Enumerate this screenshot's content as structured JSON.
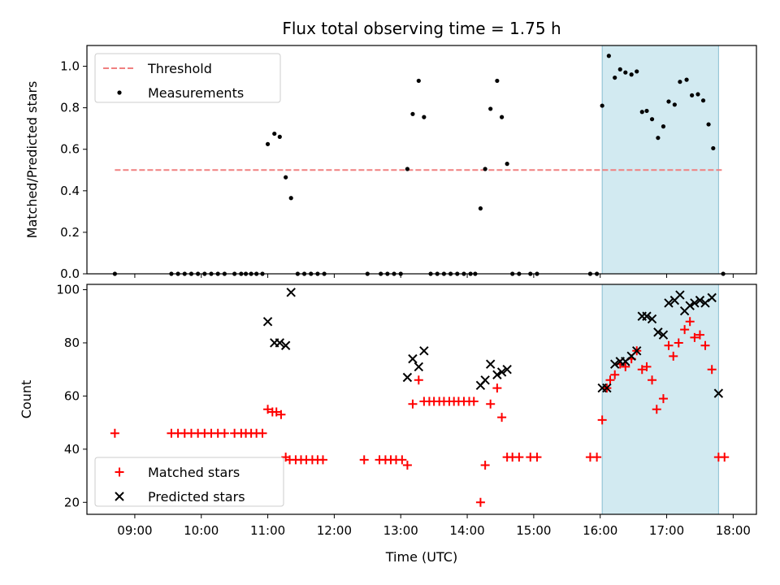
{
  "figure": {
    "title": "Flux total observing time = 1.75 h",
    "x_label": "Time (UTC)",
    "x_ticks": [
      "09:00",
      "10:00",
      "11:00",
      "12:00",
      "13:00",
      "14:00",
      "15:00",
      "16:00",
      "17:00",
      "18:00"
    ],
    "x_tick_hours": [
      9,
      10,
      11,
      12,
      13,
      14,
      15,
      16,
      17,
      18
    ],
    "x_range": [
      8.28,
      18.35
    ],
    "highlight_span": [
      16.03,
      17.78
    ],
    "highlight_color": "#add8e6"
  },
  "chart_data": [
    {
      "type": "scatter",
      "ylabel": "Matched/Predicted stars",
      "ylim": [
        0,
        1.1
      ],
      "y_ticks": [
        "0.0",
        "0.2",
        "0.4",
        "0.6",
        "0.8",
        "1.0"
      ],
      "y_tick_values": [
        0,
        0.2,
        0.4,
        0.6,
        0.8,
        1.0
      ],
      "legend": {
        "location": "upper-left",
        "entries": [
          {
            "label": "Threshold",
            "color": "#f08080",
            "marker": "dashed-line"
          },
          {
            "label": "Measurements",
            "color": "#000000",
            "marker": "dot"
          }
        ]
      },
      "threshold": {
        "name": "Threshold",
        "value": 0.5,
        "x_start": 8.7,
        "x_end": 17.85,
        "color": "#f08080"
      },
      "series": [
        {
          "name": "Measurements",
          "color": "#000000",
          "points": [
            [
              8.7,
              0
            ],
            [
              9.55,
              0
            ],
            [
              9.65,
              0
            ],
            [
              9.75,
              0
            ],
            [
              9.85,
              0
            ],
            [
              9.95,
              0
            ],
            [
              10.05,
              0
            ],
            [
              10.15,
              0
            ],
            [
              10.25,
              0
            ],
            [
              10.35,
              0
            ],
            [
              10.5,
              0
            ],
            [
              10.6,
              0
            ],
            [
              10.67,
              0
            ],
            [
              10.75,
              0
            ],
            [
              10.83,
              0
            ],
            [
              10.92,
              0
            ],
            [
              11.0,
              0.625
            ],
            [
              11.1,
              0.675
            ],
            [
              11.18,
              0.66
            ],
            [
              11.27,
              0.465
            ],
            [
              11.35,
              0.365
            ],
            [
              11.45,
              0
            ],
            [
              11.55,
              0
            ],
            [
              11.65,
              0
            ],
            [
              11.75,
              0
            ],
            [
              11.85,
              0
            ],
            [
              12.5,
              0
            ],
            [
              12.7,
              0
            ],
            [
              12.8,
              0
            ],
            [
              12.9,
              0
            ],
            [
              13.0,
              0
            ],
            [
              13.1,
              0.505
            ],
            [
              13.18,
              0.77
            ],
            [
              13.27,
              0.93
            ],
            [
              13.35,
              0.755
            ],
            [
              13.45,
              0
            ],
            [
              13.55,
              0
            ],
            [
              13.65,
              0
            ],
            [
              13.75,
              0
            ],
            [
              13.85,
              0
            ],
            [
              13.95,
              0
            ],
            [
              14.05,
              0
            ],
            [
              14.12,
              0
            ],
            [
              14.2,
              0.315
            ],
            [
              14.27,
              0.505
            ],
            [
              14.35,
              0.795
            ],
            [
              14.45,
              0.93
            ],
            [
              14.52,
              0.755
            ],
            [
              14.6,
              0.53
            ],
            [
              14.68,
              0
            ],
            [
              14.78,
              0
            ],
            [
              14.95,
              0
            ],
            [
              15.05,
              0
            ],
            [
              15.85,
              0
            ],
            [
              15.95,
              0
            ],
            [
              16.03,
              0.81
            ],
            [
              16.13,
              1.05
            ],
            [
              16.22,
              0.945
            ],
            [
              16.3,
              0.985
            ],
            [
              16.38,
              0.97
            ],
            [
              16.47,
              0.96
            ],
            [
              16.55,
              0.975
            ],
            [
              16.63,
              0.78
            ],
            [
              16.7,
              0.785
            ],
            [
              16.78,
              0.745
            ],
            [
              16.87,
              0.655
            ],
            [
              16.95,
              0.71
            ],
            [
              17.03,
              0.83
            ],
            [
              17.12,
              0.815
            ],
            [
              17.2,
              0.925
            ],
            [
              17.3,
              0.935
            ],
            [
              17.38,
              0.86
            ],
            [
              17.47,
              0.865
            ],
            [
              17.55,
              0.835
            ],
            [
              17.63,
              0.72
            ],
            [
              17.7,
              0.605
            ],
            [
              17.85,
              0
            ]
          ]
        }
      ]
    },
    {
      "type": "scatter",
      "ylabel": "Count",
      "ylim": [
        15.5,
        102
      ],
      "y_ticks": [
        "20",
        "40",
        "60",
        "80",
        "100"
      ],
      "y_tick_values": [
        20,
        40,
        60,
        80,
        100
      ],
      "legend": {
        "location": "lower-left",
        "entries": [
          {
            "label": "Matched stars",
            "color": "#ff0000",
            "marker": "plus"
          },
          {
            "label": "Predicted stars",
            "color": "#000000",
            "marker": "x"
          }
        ]
      },
      "series": [
        {
          "name": "Matched stars",
          "color": "#ff0000",
          "marker": "plus",
          "points": [
            [
              8.7,
              46
            ],
            [
              9.55,
              46
            ],
            [
              9.65,
              46
            ],
            [
              9.75,
              46
            ],
            [
              9.85,
              46
            ],
            [
              9.95,
              46
            ],
            [
              10.05,
              46
            ],
            [
              10.15,
              46
            ],
            [
              10.25,
              46
            ],
            [
              10.35,
              46
            ],
            [
              10.5,
              46
            ],
            [
              10.6,
              46
            ],
            [
              10.67,
              46
            ],
            [
              10.75,
              46
            ],
            [
              10.83,
              46
            ],
            [
              10.92,
              46
            ],
            [
              11.0,
              55
            ],
            [
              11.07,
              54
            ],
            [
              11.13,
              54
            ],
            [
              11.2,
              53
            ],
            [
              11.27,
              37
            ],
            [
              11.33,
              36
            ],
            [
              11.42,
              36
            ],
            [
              11.5,
              36
            ],
            [
              11.58,
              36
            ],
            [
              11.67,
              36
            ],
            [
              11.75,
              36
            ],
            [
              11.83,
              36
            ],
            [
              12.45,
              36
            ],
            [
              12.68,
              36
            ],
            [
              12.77,
              36
            ],
            [
              12.85,
              36
            ],
            [
              12.93,
              36
            ],
            [
              13.02,
              36
            ],
            [
              13.1,
              34
            ],
            [
              13.18,
              57
            ],
            [
              13.27,
              66
            ],
            [
              13.35,
              58
            ],
            [
              13.43,
              58
            ],
            [
              13.5,
              58
            ],
            [
              13.58,
              58
            ],
            [
              13.65,
              58
            ],
            [
              13.73,
              58
            ],
            [
              13.8,
              58
            ],
            [
              13.87,
              58
            ],
            [
              13.95,
              58
            ],
            [
              14.03,
              58
            ],
            [
              14.1,
              58
            ],
            [
              14.2,
              20
            ],
            [
              14.27,
              34
            ],
            [
              14.35,
              57
            ],
            [
              14.45,
              63
            ],
            [
              14.52,
              52
            ],
            [
              14.6,
              37
            ],
            [
              14.68,
              37
            ],
            [
              14.78,
              37
            ],
            [
              14.95,
              37
            ],
            [
              15.05,
              37
            ],
            [
              15.85,
              37
            ],
            [
              15.95,
              37
            ],
            [
              16.03,
              51
            ],
            [
              16.1,
              63
            ],
            [
              16.15,
              66
            ],
            [
              16.22,
              68
            ],
            [
              16.3,
              72
            ],
            [
              16.38,
              71
            ],
            [
              16.47,
              74
            ],
            [
              16.55,
              77
            ],
            [
              16.63,
              70
            ],
            [
              16.7,
              71
            ],
            [
              16.78,
              66
            ],
            [
              16.85,
              55
            ],
            [
              16.95,
              59
            ],
            [
              17.03,
              79
            ],
            [
              17.1,
              75
            ],
            [
              17.18,
              80
            ],
            [
              17.27,
              85
            ],
            [
              17.35,
              88
            ],
            [
              17.42,
              82
            ],
            [
              17.5,
              83
            ],
            [
              17.58,
              79
            ],
            [
              17.68,
              70
            ],
            [
              17.78,
              37
            ],
            [
              17.87,
              37
            ]
          ]
        },
        {
          "name": "Predicted stars",
          "color": "#000000",
          "marker": "x",
          "points": [
            [
              11.0,
              88
            ],
            [
              11.1,
              80
            ],
            [
              11.18,
              80
            ],
            [
              11.27,
              79
            ],
            [
              11.35,
              99
            ],
            [
              13.1,
              67
            ],
            [
              13.18,
              74
            ],
            [
              13.27,
              71
            ],
            [
              13.35,
              77
            ],
            [
              14.2,
              64
            ],
            [
              14.27,
              66
            ],
            [
              14.35,
              72
            ],
            [
              14.45,
              68
            ],
            [
              14.52,
              69
            ],
            [
              14.6,
              70
            ],
            [
              16.03,
              63
            ],
            [
              16.1,
              63
            ],
            [
              16.22,
              72
            ],
            [
              16.3,
              73
            ],
            [
              16.38,
              73
            ],
            [
              16.47,
              75
            ],
            [
              16.55,
              77
            ],
            [
              16.63,
              90
            ],
            [
              16.7,
              90
            ],
            [
              16.78,
              89
            ],
            [
              16.87,
              84
            ],
            [
              16.95,
              83
            ],
            [
              17.03,
              95
            ],
            [
              17.12,
              96
            ],
            [
              17.2,
              98
            ],
            [
              17.27,
              92
            ],
            [
              17.35,
              94
            ],
            [
              17.42,
              95
            ],
            [
              17.5,
              96
            ],
            [
              17.58,
              95
            ],
            [
              17.68,
              97
            ],
            [
              17.78,
              61
            ]
          ]
        }
      ]
    }
  ]
}
